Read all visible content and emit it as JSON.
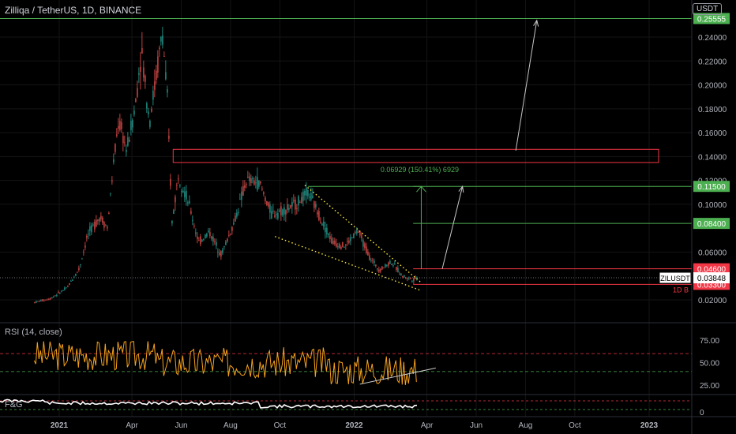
{
  "header": {
    "title": "Zilliqa / TetherUS, 1D, BINANCE",
    "currency_button": "USDT"
  },
  "colors": {
    "up": "#26a69a",
    "down": "#ef5350",
    "rsi": "#f7a21b",
    "obv": "#ffffff",
    "green_level": "#4caf50",
    "red_level": "#f23645",
    "wedge": "#ffeb3b",
    "arrow": "#c8c8c8"
  },
  "chart_data": {
    "type": "candlestick",
    "symbol": "ZILUSDT",
    "interval": "1D",
    "exchange": "BINANCE",
    "ylim": [
      0.01,
      0.26
    ],
    "x_ticks": [
      "2021",
      "Apr",
      "Jun",
      "Aug",
      "Oct",
      "2022",
      "Apr",
      "Jun",
      "Aug",
      "Oct",
      "2023"
    ],
    "y_ticks": [
      "0.24000",
      "0.22000",
      "0.20000",
      "0.18000",
      "0.16000",
      "0.14000",
      "0.12000",
      "0.10000",
      "0.06000",
      "0.02000"
    ],
    "price_path": [
      [
        "2020-12-01",
        0.018
      ],
      [
        "2020-12-20",
        0.021
      ],
      [
        "2021-01-10",
        0.03
      ],
      [
        "2021-01-25",
        0.046
      ],
      [
        "2021-02-05",
        0.075
      ],
      [
        "2021-02-20",
        0.09
      ],
      [
        "2021-03-01",
        0.08
      ],
      [
        "2021-03-08",
        0.13
      ],
      [
        "2021-03-15",
        0.17
      ],
      [
        "2021-03-25",
        0.145
      ],
      [
        "2021-04-05",
        0.185
      ],
      [
        "2021-04-12",
        0.23
      ],
      [
        "2021-04-22",
        0.17
      ],
      [
        "2021-05-01",
        0.21
      ],
      [
        "2021-05-08",
        0.245
      ],
      [
        "2021-05-14",
        0.19
      ],
      [
        "2021-05-20",
        0.085
      ],
      [
        "2021-05-28",
        0.125
      ],
      [
        "2021-06-10",
        0.1
      ],
      [
        "2021-06-22",
        0.068
      ],
      [
        "2021-07-05",
        0.077
      ],
      [
        "2021-07-20",
        0.058
      ],
      [
        "2021-08-05",
        0.085
      ],
      [
        "2021-08-20",
        0.12
      ],
      [
        "2021-09-05",
        0.118
      ],
      [
        "2021-09-20",
        0.092
      ],
      [
        "2021-10-05",
        0.095
      ],
      [
        "2021-10-20",
        0.1
      ],
      [
        "2021-11-05",
        0.11
      ],
      [
        "2021-11-20",
        0.088
      ],
      [
        "2021-12-05",
        0.068
      ],
      [
        "2021-12-20",
        0.065
      ],
      [
        "2022-01-05",
        0.078
      ],
      [
        "2022-01-20",
        0.055
      ],
      [
        "2022-02-01",
        0.045
      ],
      [
        "2022-02-15",
        0.052
      ],
      [
        "2022-03-01",
        0.04
      ],
      [
        "2022-03-14",
        0.037
      ],
      [
        "2022-03-20",
        0.0385
      ]
    ],
    "last_price": {
      "label": "ZILUSDT",
      "value": "0.03848"
    },
    "levels": [
      {
        "value": "0.25555",
        "color": "green"
      },
      {
        "value": "0.11500",
        "color": "green"
      },
      {
        "value": "0.08400",
        "color": "green"
      },
      {
        "value": "0.04600",
        "color": "red"
      },
      {
        "value": "0.03300",
        "color": "red",
        "sub_label": "1D B"
      }
    ],
    "resistance_box": {
      "from": "2021-05-22",
      "to": "2023-01-01",
      "low": 0.135,
      "high": 0.146
    },
    "measure": {
      "text": "0.06929 (150.41%) 6929",
      "from": 0.046,
      "to": 0.115,
      "date": "2022-03-25"
    },
    "wedge": {
      "upper": [
        [
          "2021-11-01",
          0.116
        ],
        [
          "2022-03-24",
          0.035
        ]
      ],
      "lower": [
        [
          "2021-09-25",
          0.073
        ],
        [
          "2022-03-24",
          0.028
        ]
      ]
    },
    "arrows": [
      {
        "from": [
          "2022-04-20",
          0.046
        ],
        "to": [
          "2022-05-15",
          0.115
        ]
      },
      {
        "from": [
          "2022-07-20",
          0.145
        ],
        "to": [
          "2022-08-15",
          0.254
        ]
      }
    ]
  },
  "rsi_panel": {
    "label": "RSI (14, close)",
    "ticks": [
      "75.00",
      "50.00",
      "25.00"
    ],
    "range": [
      10,
      90
    ],
    "band_lines": [
      60,
      40
    ],
    "trendline": [
      [
        "2022-01-08",
        26
      ],
      [
        "2022-04-12",
        44
      ]
    ]
  },
  "obv_panel": {
    "label": "F&G",
    "ticks": [
      "0"
    ]
  }
}
